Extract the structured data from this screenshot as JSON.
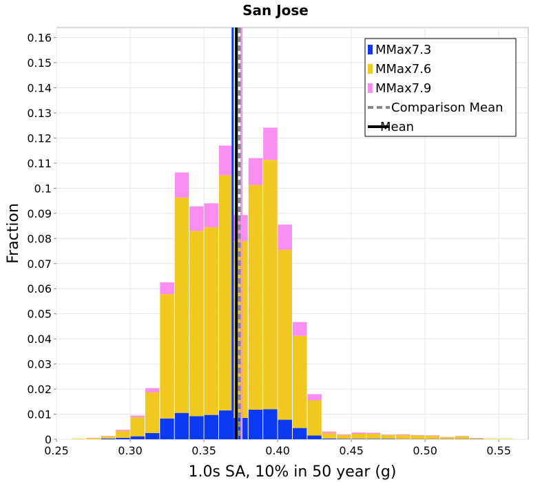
{
  "chart_data": {
    "type": "bar",
    "stacked": true,
    "title": "San Jose",
    "xlabel": "1.0s SA, 10% in 50 year (g)",
    "ylabel": "Fraction",
    "xlim": [
      0.25,
      0.57
    ],
    "ylim": [
      0,
      0.164
    ],
    "bin_width": 0.01,
    "xticks": [
      0.25,
      0.3,
      0.35,
      0.4,
      0.45,
      0.5,
      0.55
    ],
    "xtick_labels": [
      "0.25",
      "0.30",
      "0.35",
      "0.40",
      "0.45",
      "0.50",
      "0.55"
    ],
    "yticks": [
      0,
      0.01,
      0.02,
      0.03,
      0.04,
      0.05,
      0.06,
      0.07,
      0.08,
      0.09,
      0.1,
      0.11,
      0.12,
      0.13,
      0.14,
      0.15,
      0.16
    ],
    "ytick_labels": [
      "0",
      "0.01",
      "0.02",
      "0.03",
      "0.04",
      "0.05",
      "0.06",
      "0.07",
      "0.08",
      "0.09",
      "0.1",
      "0.11",
      "0.12",
      "0.13",
      "0.14",
      "0.15",
      "0.16"
    ],
    "grid": true,
    "legend_position": "top-right",
    "bin_starts": [
      0.26,
      0.27,
      0.28,
      0.29,
      0.3,
      0.31,
      0.32,
      0.33,
      0.34,
      0.35,
      0.36,
      0.37,
      0.38,
      0.39,
      0.4,
      0.41,
      0.42,
      0.43,
      0.44,
      0.45,
      0.46,
      0.47,
      0.48,
      0.49,
      0.5,
      0.51,
      0.52,
      0.53,
      0.54,
      0.55
    ],
    "series": [
      {
        "name": "MMax7.3",
        "color": "#0b3af0",
        "values": [
          0,
          0,
          0.0003,
          0.0006,
          0.0012,
          0.0025,
          0.0083,
          0.0105,
          0.0092,
          0.0097,
          0.0115,
          0.0085,
          0.0118,
          0.012,
          0.0078,
          0.0045,
          0.0015,
          0.0003,
          0.0002,
          0.0002,
          0.0002,
          0.0002,
          0.0001,
          0.0001,
          0.0001,
          0.0001,
          0.0001,
          0.0001,
          0,
          0
        ]
      },
      {
        "name": "MMax7.6",
        "color": "#f0c820",
        "values": [
          0.0002,
          0.0005,
          0.0008,
          0.0027,
          0.0076,
          0.0162,
          0.0495,
          0.0858,
          0.0738,
          0.0748,
          0.0937,
          0.0705,
          0.0895,
          0.0993,
          0.0677,
          0.0367,
          0.014,
          0.0022,
          0.0015,
          0.002,
          0.002,
          0.0015,
          0.0016,
          0.0014,
          0.0013,
          0.0007,
          0.001,
          0.0003,
          0.0002,
          0.0002
        ]
      },
      {
        "name": "MMax7.9",
        "color": "#f78ef0",
        "values": [
          0,
          0.0001,
          0.0002,
          0.0005,
          0.0007,
          0.0017,
          0.0047,
          0.01,
          0.0098,
          0.0095,
          0.0118,
          0.0103,
          0.0107,
          0.0128,
          0.01,
          0.0055,
          0.0025,
          0.0006,
          0.0003,
          0.0005,
          0.0004,
          0.0002,
          0.0003,
          0.0002,
          0.0002,
          0.0001,
          0.0002,
          0.0001,
          0,
          0
        ]
      }
    ],
    "lines": [
      {
        "name": "Comparison Mean",
        "x": 0.374,
        "color": "#888888",
        "style": "dashed"
      },
      {
        "name": "Mean",
        "x": 0.372,
        "color": "#000000",
        "style": "solid"
      }
    ],
    "extra_verticals": [
      {
        "x": 0.3695,
        "color": "#0b3af0"
      },
      {
        "x": 0.3725,
        "color": "#f0c820"
      },
      {
        "x": 0.3755,
        "color": "#f78ef0"
      }
    ]
  }
}
